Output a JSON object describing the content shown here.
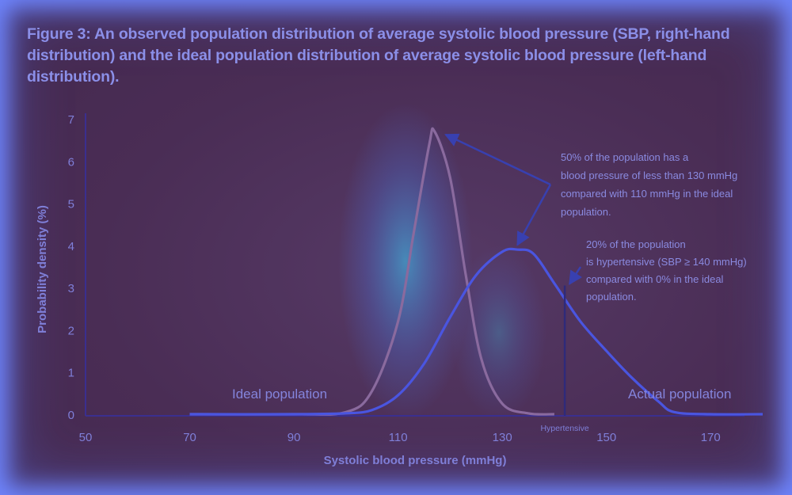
{
  "figure_title": "Figure 3: An observed population distribution of average systolic blood pressure (SBP, right-hand distribution) and the ideal population distribution of average systolic blood pressure (left-hand distribution).",
  "chart_data": {
    "type": "line",
    "xlabel": "Systolic blood pressure (mmHg)",
    "ylabel": "Probability density (%)",
    "xlim": [
      50,
      180
    ],
    "ylim": [
      0,
      7
    ],
    "x_ticks": [
      "50",
      "70",
      "90",
      "110",
      "130",
      "150",
      "170"
    ],
    "y_ticks": [
      "0",
      "1",
      "2",
      "3",
      "4",
      "5",
      "6",
      "7"
    ],
    "grid": false,
    "series": [
      {
        "name": "Ideal population",
        "color": "#8a6a9e",
        "x": [
          70,
          90,
          100,
          105,
          110,
          113,
          116,
          117,
          120,
          123,
          126,
          130,
          135,
          140
        ],
        "y": [
          0.0,
          0.0,
          0.05,
          0.55,
          2.2,
          4.3,
          6.4,
          6.7,
          5.6,
          3.3,
          1.3,
          0.25,
          0.02,
          0.0
        ]
      },
      {
        "name": "Actual population",
        "color": "#4a55e0",
        "x": [
          70,
          90,
          100,
          105,
          110,
          115,
          120,
          125,
          130,
          133,
          136,
          140,
          145,
          150,
          155,
          160,
          163,
          170,
          180
        ],
        "y": [
          0.0,
          0.0,
          0.02,
          0.1,
          0.45,
          1.2,
          2.3,
          3.3,
          3.85,
          3.9,
          3.8,
          3.1,
          2.2,
          1.5,
          0.85,
          0.3,
          0.05,
          0.0,
          0.0
        ]
      }
    ],
    "annotations": [
      {
        "text": [
          "50% of the population has a",
          "blood pressure of less than 130 mmHg",
          "compared with 110 mmHg in the ideal",
          "population."
        ]
      },
      {
        "text": [
          "20% of the population",
          "is hypertensive (SBP  ≥ 140 mmHg)",
          "compared with 0% in the ideal",
          "population."
        ]
      }
    ],
    "threshold": {
      "x": 142,
      "label": "Hypertensive"
    }
  },
  "colors": {
    "axis": "#3a2f8f",
    "arrow": "#3840b0",
    "text": "#8a8ae0"
  }
}
